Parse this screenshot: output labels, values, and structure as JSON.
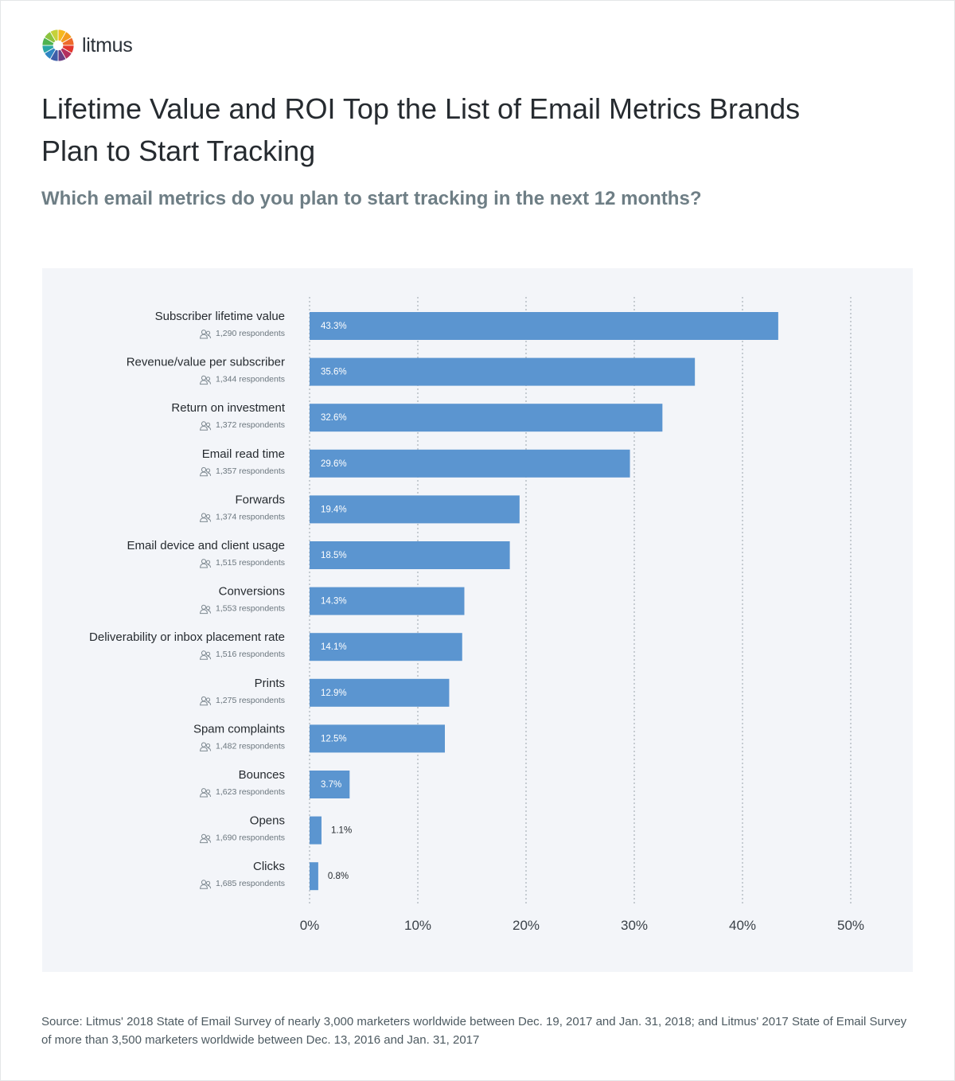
{
  "brand": {
    "name": "litmus",
    "logo_icon": "litmus-pinwheel-icon",
    "logo_colors": [
      "#f6b81d",
      "#f39c1f",
      "#ee6a2b",
      "#e3372f",
      "#b3305f",
      "#6a3f85",
      "#3d5ea8",
      "#2f86c3",
      "#2aa6a6",
      "#4fb24f",
      "#8cc43f",
      "#c6d13a"
    ]
  },
  "header": {
    "title": "Lifetime Value and ROI Top the List of Email Metrics Brands Plan to Start Tracking",
    "subtitle": "Which email metrics do you plan to start tracking in the next 12 months?"
  },
  "chart_data": {
    "type": "bar",
    "orientation": "horizontal",
    "categories": [
      "Subscriber lifetime value",
      "Revenue/value per subscriber",
      "Return on investment",
      "Email read time",
      "Forwards",
      "Email device and client usage",
      "Conversions",
      "Deliverability or inbox placement rate",
      "Prints",
      "Spam complaints",
      "Bounces",
      "Opens",
      "Clicks"
    ],
    "respondents": [
      "1,290 respondents",
      "1,344 respondents",
      "1,372 respondents",
      "1,357 respondents",
      "1,374 respondents",
      "1,515 respondents",
      "1,553 respondents",
      "1,516 respondents",
      "1,275 respondents",
      "1,482 respondents",
      "1,623 respondents",
      "1,690 respondents",
      "1,685 respondents"
    ],
    "values": [
      43.3,
      35.6,
      32.6,
      29.6,
      19.4,
      18.5,
      14.3,
      14.1,
      12.9,
      12.5,
      3.7,
      1.1,
      0.8
    ],
    "data_labels": [
      "43.3%",
      "35.6%",
      "32.6%",
      "29.6%",
      "19.4%",
      "18.5%",
      "14.3%",
      "14.1%",
      "12.9%",
      "12.5%",
      "3.7%",
      "1.1%",
      "0.8%"
    ],
    "x_ticks": [
      0,
      10,
      20,
      30,
      40,
      50
    ],
    "x_tick_labels": [
      "0%",
      "10%",
      "20%",
      "30%",
      "40%",
      "50%"
    ],
    "xlim": [
      0,
      50
    ],
    "grid": "vertical-dotted",
    "bar_color": "#5b95d0",
    "respondent_icon": "people-icon",
    "title": "",
    "xlabel": "",
    "ylabel": ""
  },
  "footer": {
    "source": "Source: Litmus' 2018 State of Email Survey of nearly 3,000 marketers worldwide between Dec. 19, 2017 and Jan. 31, 2018; and Litmus' 2017 State of Email Survey of more than 3,500 marketers worldwide between Dec. 13, 2016 and Jan. 31, 2017"
  }
}
